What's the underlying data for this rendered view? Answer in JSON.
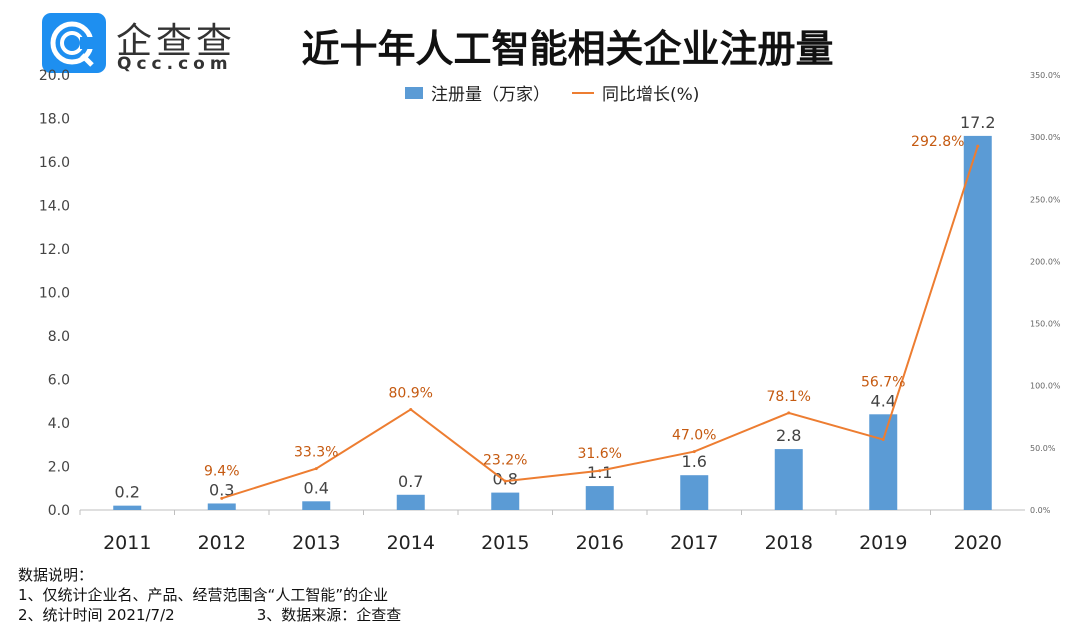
{
  "logo": {
    "name": "企查查",
    "domain": "Qcc.com"
  },
  "chart_data": {
    "type": "bar+line",
    "title": "近十年人工智能相关企业注册量",
    "categories": [
      "2011",
      "2012",
      "2013",
      "2014",
      "2015",
      "2016",
      "2017",
      "2018",
      "2019",
      "2020"
    ],
    "series": [
      {
        "name": "注册量（万家）",
        "type": "bar",
        "axis": "left",
        "values": [
          0.2,
          0.3,
          0.4,
          0.7,
          0.8,
          1.1,
          1.6,
          2.8,
          4.4,
          17.2
        ],
        "labels": [
          "0.2",
          "0.3",
          "0.4",
          "0.7",
          "0.8",
          "1.1",
          "1.6",
          "2.8",
          "4.4",
          "17.2"
        ],
        "color": "#5b9bd5"
      },
      {
        "name": "同比增长(%)",
        "type": "line",
        "axis": "right",
        "x": [
          "2012",
          "2013",
          "2014",
          "2015",
          "2016",
          "2017",
          "2018",
          "2019",
          "2020"
        ],
        "values": [
          9.4,
          33.3,
          80.9,
          23.2,
          31.6,
          47.0,
          78.1,
          56.7,
          292.8
        ],
        "labels": [
          "9.4%",
          "33.3%",
          "80.9%",
          "23.2%",
          "31.6%",
          "47.0%",
          "78.1%",
          "56.7%",
          "292.8%"
        ],
        "color": "#ed7d31"
      }
    ],
    "y_left": {
      "range": [
        0,
        20
      ],
      "ticks": [
        "0.0",
        "2.0",
        "4.0",
        "6.0",
        "8.0",
        "10.0",
        "12.0",
        "14.0",
        "16.0",
        "18.0",
        "20.0"
      ]
    },
    "y_right": {
      "range": [
        0,
        350
      ],
      "ticks": [
        "0.0%",
        "50.0%",
        "100.0%",
        "150.0%",
        "200.0%",
        "250.0%",
        "300.0%",
        "350.0%"
      ]
    },
    "legend": "top-center",
    "grid": false
  },
  "notes": {
    "heading": "数据说明：",
    "line1": "1、仅统计企业名、产品、经营范围含“人工智能”的企业",
    "line2a": "2、统计时间 2021/7/2",
    "line2b": "3、数据来源：企查查"
  }
}
